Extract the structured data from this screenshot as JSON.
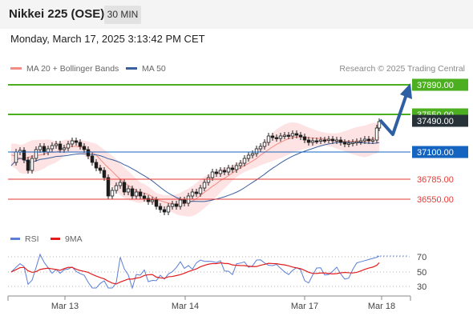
{
  "header": {
    "title": "Nikkei 225 (OSE)",
    "timeframe": "30 MIN"
  },
  "datetime": "Monday, March 17, 2025 3:13:42 PM CET",
  "legend": {
    "ma_bb": "MA 20 + Bollinger Bands",
    "ma50": "MA 50",
    "credit": "Research © 2025 Trading Central"
  },
  "colors": {
    "up": "#4caf1f",
    "current": "#263238",
    "pivot": "#1565c0",
    "down": "#e53935",
    "ma20": "#f28b82",
    "ma50": "#3b5f9e",
    "arrow": "#2e5fa3",
    "bands": "#fcd9d9"
  },
  "levels": [
    {
      "label": "37890.00",
      "kind": "up"
    },
    {
      "label": "37550.00",
      "kind": "up"
    },
    {
      "label": "37490.00",
      "kind": "current"
    },
    {
      "label": "37100.00",
      "kind": "pivot"
    },
    {
      "label": "36785.00",
      "kind": "down"
    },
    {
      "label": "36550.00",
      "kind": "down"
    }
  ],
  "rsi": {
    "legend_rsi": "RSI",
    "legend_ma": "9MA",
    "levels": [
      "70",
      "50",
      "30"
    ]
  },
  "xaxis": {
    "labels": [
      "Mar 13",
      "Mar 14",
      "Mar 17",
      "Mar 18"
    ]
  }
}
